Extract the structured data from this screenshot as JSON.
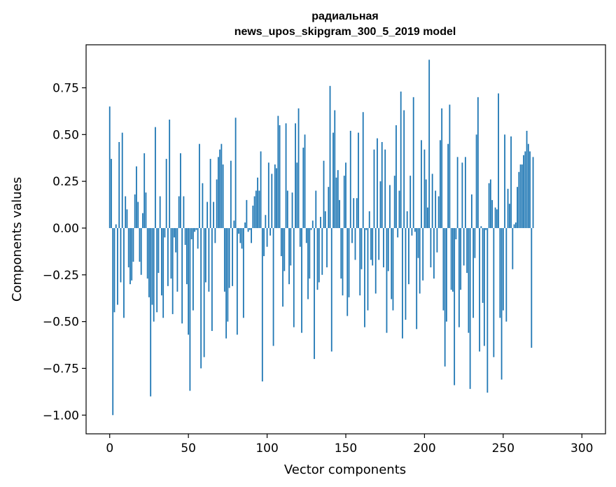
{
  "chart_data": {
    "type": "bar",
    "title_line1": "радиальная",
    "title_line2": "news_upos_skipgram_300_5_2019 model",
    "xlabel": "Vector components",
    "ylabel": "Components values",
    "xlim": [
      -15,
      315
    ],
    "ylim": [
      -1.1,
      0.98
    ],
    "x_ticks": [
      0,
      50,
      100,
      150,
      200,
      250,
      300
    ],
    "x_tick_labels": [
      "0",
      "50",
      "100",
      "150",
      "200",
      "250",
      "300"
    ],
    "y_ticks": [
      -1.0,
      -0.75,
      -0.5,
      -0.25,
      0.0,
      0.25,
      0.5,
      0.75
    ],
    "y_tick_labels": [
      "−1.00",
      "−0.75",
      "−0.50",
      "−0.25",
      "0.00",
      "0.25",
      "0.50",
      "0.75"
    ],
    "bar_color": "#1f77b4",
    "values": [
      0.65,
      0.37,
      -1.0,
      -0.45,
      0.02,
      -0.41,
      0.46,
      -0.29,
      0.51,
      -0.48,
      0.17,
      0.1,
      -0.21,
      -0.3,
      -0.28,
      -0.18,
      0.18,
      0.33,
      0.14,
      -0.18,
      -0.25,
      0.08,
      0.4,
      0.19,
      -0.27,
      -0.37,
      -0.9,
      -0.41,
      -0.5,
      0.54,
      -0.45,
      -0.24,
      0.17,
      -0.36,
      -0.48,
      -0.05,
      0.37,
      -0.31,
      0.58,
      -0.27,
      -0.46,
      -0.05,
      -0.13,
      -0.34,
      0.17,
      0.4,
      -0.51,
      0.17,
      -0.09,
      -0.3,
      -0.57,
      -0.87,
      -0.06,
      -0.44,
      -0.02,
      -0.01,
      -0.11,
      0.45,
      -0.75,
      0.24,
      -0.69,
      -0.29,
      0.14,
      -0.34,
      0.37,
      -0.55,
      0.14,
      -0.08,
      0.26,
      0.38,
      0.42,
      0.45,
      0.34,
      -0.34,
      -0.59,
      -0.5,
      -0.32,
      0.36,
      -0.31,
      0.04,
      0.59,
      -0.57,
      -0.03,
      -0.08,
      -0.11,
      -0.48,
      0.03,
      0.15,
      -0.02,
      -0.01,
      -0.08,
      0.12,
      0.17,
      0.2,
      0.27,
      0.2,
      0.41,
      -0.82,
      -0.15,
      0.07,
      -0.1,
      0.35,
      -0.04,
      0.29,
      -0.63,
      0.34,
      0.32,
      0.6,
      0.55,
      -0.15,
      -0.42,
      -0.23,
      0.56,
      0.2,
      -0.3,
      -0.2,
      0.19,
      -0.53,
      0.56,
      0.35,
      0.64,
      -0.1,
      -0.56,
      0.43,
      0.5,
      -0.08,
      -0.38,
      -0.27,
      -0.01,
      0.04,
      -0.7,
      0.2,
      -0.33,
      -0.29,
      0.06,
      -0.25,
      0.36,
      0.09,
      -0.21,
      0.22,
      0.76,
      -0.66,
      0.51,
      0.63,
      0.27,
      0.31,
      0.15,
      -0.27,
      -0.36,
      0.28,
      0.35,
      -0.47,
      -0.37,
      0.52,
      -0.08,
      0.16,
      -0.17,
      0.16,
      0.51,
      -0.36,
      -0.22,
      0.62,
      -0.53,
      -0.01,
      -0.44,
      0.09,
      -0.17,
      -0.2,
      0.42,
      -0.35,
      0.48,
      -0.17,
      0.25,
      0.46,
      -0.21,
      0.42,
      -0.56,
      -0.23,
      0.23,
      -0.38,
      -0.44,
      0.28,
      0.55,
      -0.05,
      0.2,
      0.73,
      -0.59,
      0.63,
      -0.49,
      0.09,
      -0.3,
      0.28,
      -0.04,
      0.7,
      -0.02,
      -0.54,
      -0.16,
      -0.35,
      0.47,
      -0.28,
      0.42,
      0.26,
      0.11,
      0.9,
      -0.21,
      0.29,
      -0.27,
      0.2,
      -0.13,
      0.17,
      0.47,
      0.64,
      -0.44,
      -0.74,
      -0.5,
      0.45,
      0.66,
      -0.33,
      -0.34,
      -0.84,
      -0.06,
      0.38,
      -0.53,
      -0.33,
      0.35,
      -0.2,
      0.38,
      -0.24,
      -0.56,
      -0.86,
      0.18,
      -0.48,
      -0.16,
      0.5,
      0.7,
      -0.66,
      0.01,
      -0.4,
      -0.63,
      -0.01,
      -0.88,
      0.24,
      0.26,
      0.15,
      -0.69,
      0.11,
      0.1,
      0.72,
      -0.48,
      -0.81,
      -0.44,
      0.5,
      -0.5,
      0.21,
      0.13,
      0.49,
      -0.22,
      0.02,
      0.03,
      0.22,
      0.3,
      0.34,
      0.34,
      0.39,
      0.41,
      0.52,
      0.45,
      0.41,
      -0.64,
      0.38
    ],
    "grid": false
  }
}
